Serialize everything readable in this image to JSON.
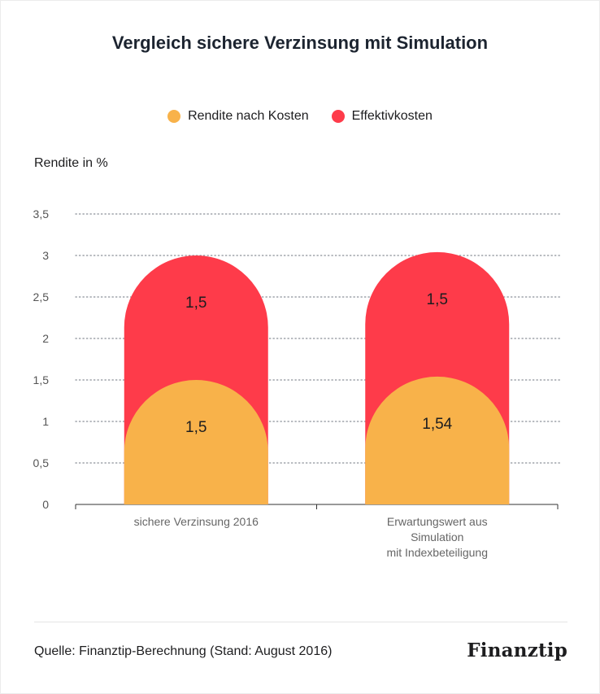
{
  "chart_data": {
    "type": "bar",
    "stacked": true,
    "title": "Vergleich sichere Verzinsung mit Simulation",
    "ylabel": "Rendite in %",
    "xlabel": "",
    "ylim": [
      0,
      3.5
    ],
    "yticks": [
      "0",
      "0,5",
      "1",
      "1,5",
      "2",
      "2,5",
      "3",
      "3,5"
    ],
    "ytick_values": [
      0,
      0.5,
      1,
      1.5,
      2,
      2.5,
      3,
      3.5
    ],
    "categories": [
      [
        "sichere Verzinsung 2016"
      ],
      [
        "Erwartungswert aus",
        "Simulation",
        "mit Indexbeteiligung"
      ]
    ],
    "series": [
      {
        "name": "Rendite nach Kosten",
        "color": "#f8b24a",
        "values": [
          1.5,
          1.54
        ],
        "labels": [
          "1,5",
          "1,54"
        ]
      },
      {
        "name": "Effektivkosten",
        "color": "#fe3b4a",
        "values": [
          1.5,
          1.5
        ],
        "labels": [
          "1,5",
          "1,5"
        ]
      }
    ],
    "legend_position": "top-center",
    "grid": true
  },
  "footer": {
    "source": "Quelle: Finanztip-Berechnung (Stand: August 2016)",
    "logo_text": "Finanztip"
  }
}
